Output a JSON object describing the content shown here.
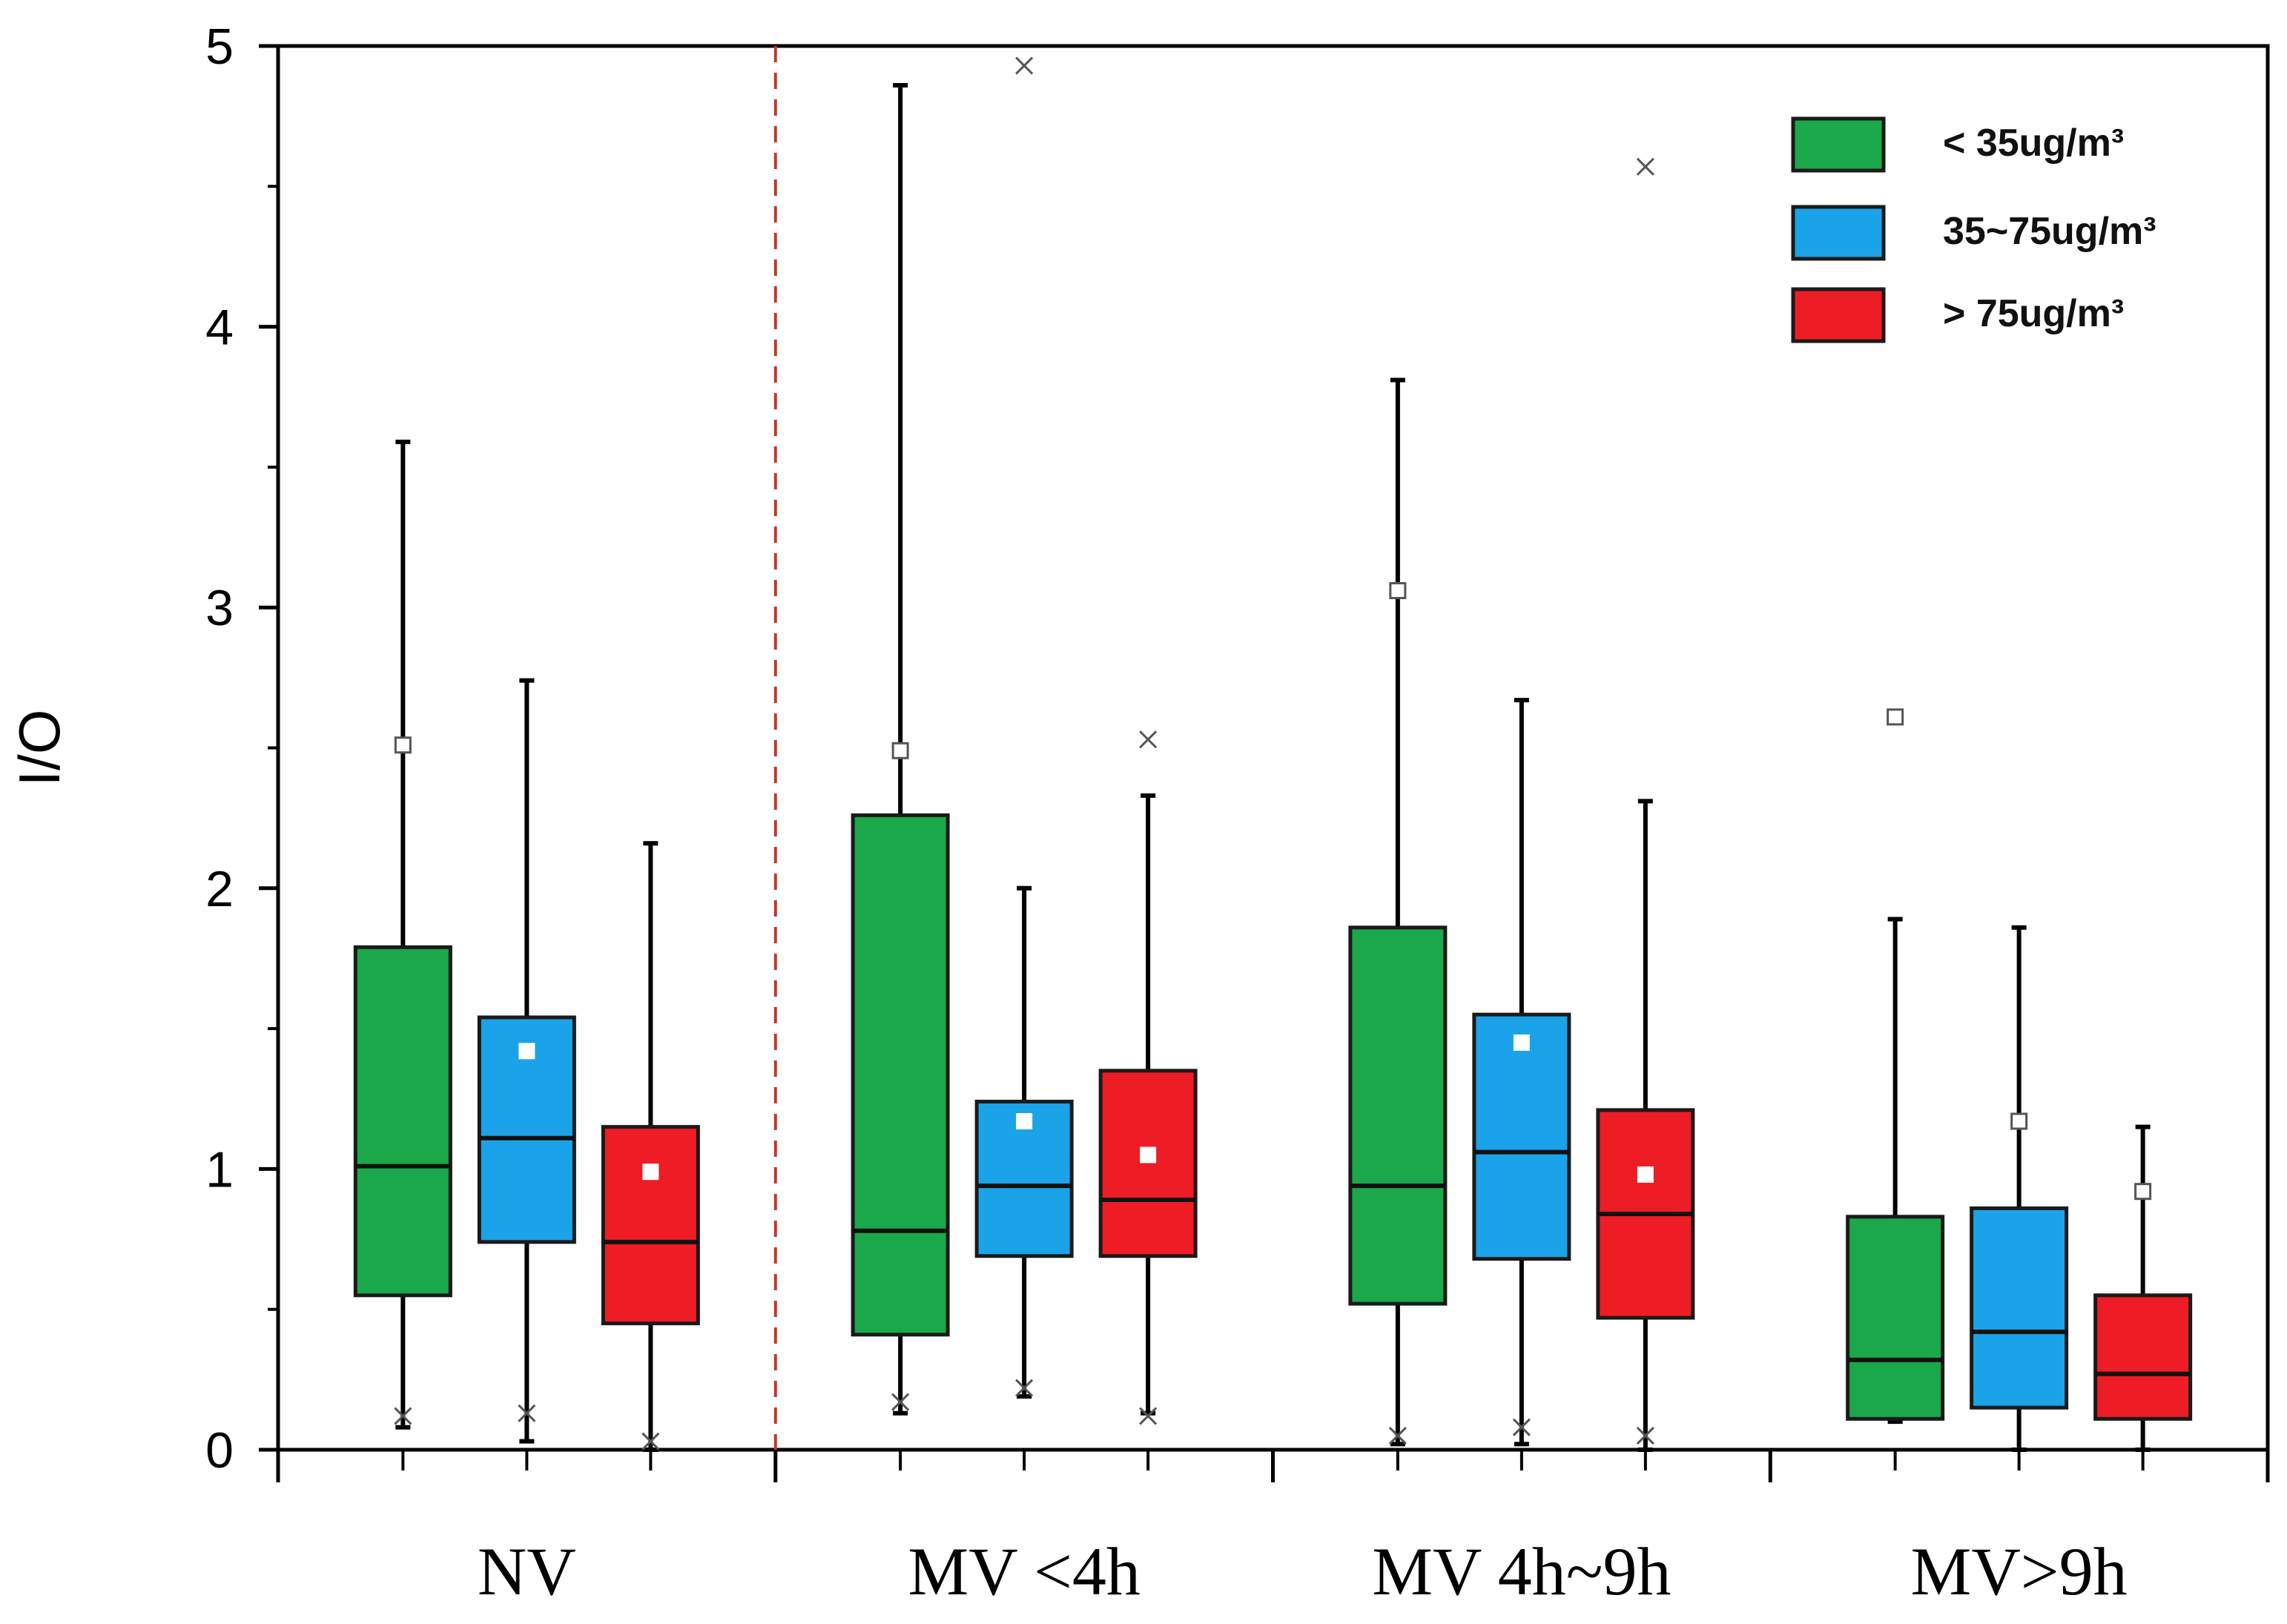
{
  "chart_data": {
    "type": "box",
    "ylabel": "I/O",
    "xlabel": "",
    "ylim": [
      0,
      5
    ],
    "yticks": [
      "0",
      "1",
      "2",
      "3",
      "4",
      "5"
    ],
    "categories": [
      "NV",
      "MV  <4h",
      "MV  4h~9h",
      "MV>9h"
    ],
    "separator_after_category": "NV",
    "legend_position": "top-right",
    "series": [
      {
        "name": "< 35ug/m³",
        "color": "#1aa84a",
        "boxes": [
          {
            "whisker_low": 0.08,
            "q1": 0.55,
            "median": 1.01,
            "q3": 1.79,
            "whisker_high": 3.59,
            "mean": 2.51,
            "outliers": [
              0.12
            ]
          },
          {
            "whisker_low": 0.13,
            "q1": 0.41,
            "median": 0.78,
            "q3": 2.26,
            "whisker_high": 4.86,
            "mean": 2.49,
            "outliers": [
              0.17
            ]
          },
          {
            "whisker_low": 0.02,
            "q1": 0.52,
            "median": 0.94,
            "q3": 1.86,
            "whisker_high": 3.81,
            "mean": 3.06,
            "outliers": [
              0.05
            ]
          },
          {
            "whisker_low": 0.1,
            "q1": 0.11,
            "median": 0.32,
            "q3": 0.83,
            "whisker_high": 1.89,
            "mean": 2.61,
            "outliers": []
          }
        ]
      },
      {
        "name": "35~75ug/m³",
        "color": "#1aa3e8",
        "boxes": [
          {
            "whisker_low": 0.03,
            "q1": 0.74,
            "median": 1.11,
            "q3": 1.54,
            "whisker_high": 2.74,
            "mean": 1.42,
            "outliers": [
              0.13
            ]
          },
          {
            "whisker_low": 0.19,
            "q1": 0.69,
            "median": 0.94,
            "q3": 1.24,
            "whisker_high": 2.0,
            "mean": 1.17,
            "outliers": [
              0.22,
              4.93
            ]
          },
          {
            "whisker_low": 0.02,
            "q1": 0.68,
            "median": 1.06,
            "q3": 1.55,
            "whisker_high": 2.67,
            "mean": 1.45,
            "outliers": [
              0.08
            ]
          },
          {
            "whisker_low": 0.0,
            "q1": 0.15,
            "median": 0.42,
            "q3": 0.86,
            "whisker_high": 1.86,
            "mean": 1.17,
            "outliers": []
          }
        ]
      },
      {
        "name": "> 75ug/m³",
        "color": "#ee1c24",
        "boxes": [
          {
            "whisker_low": 0.0,
            "q1": 0.45,
            "median": 0.74,
            "q3": 1.15,
            "whisker_high": 2.16,
            "mean": 0.99,
            "outliers": [
              0.03
            ]
          },
          {
            "whisker_low": 0.13,
            "q1": 0.69,
            "median": 0.89,
            "q3": 1.35,
            "whisker_high": 2.33,
            "mean": 1.05,
            "outliers": [
              0.12,
              2.53
            ]
          },
          {
            "whisker_low": 0.0,
            "q1": 0.47,
            "median": 0.84,
            "q3": 1.21,
            "whisker_high": 2.31,
            "mean": 0.98,
            "outliers": [
              0.05,
              4.57
            ]
          },
          {
            "whisker_low": 0.0,
            "q1": 0.11,
            "median": 0.27,
            "q3": 0.55,
            "whisker_high": 1.15,
            "mean": 0.92,
            "outliers": []
          }
        ]
      }
    ]
  }
}
